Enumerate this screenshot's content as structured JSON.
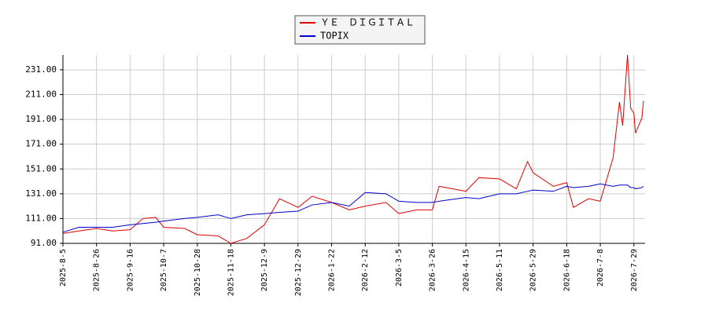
{
  "chart_data": {
    "type": "line",
    "x": [
      "2025-8-5",
      "2025-8-15",
      "2025-8-26",
      "2025-9-5",
      "2025-9-16",
      "2025-9-24",
      "2025-10-2",
      "2025-10-7",
      "2025-10-20",
      "2025-10-28",
      "2025-11-10",
      "2025-11-18",
      "2025-11-28",
      "2025-12-9",
      "2025-12-18",
      "2025-12-29",
      "2026-1-8",
      "2026-1-22",
      "2026-2-2",
      "2026-2-12",
      "2026-2-25",
      "2026-3-5",
      "2026-3-16",
      "2026-3-26",
      "2026-3-30",
      "2026-4-15",
      "2026-4-25",
      "2026-5-11",
      "2026-5-20",
      "2026-5-26",
      "2026-5-29",
      "2026-6-10",
      "2026-6-18",
      "2026-6-22",
      "2026-7-1",
      "2026-7-8",
      "2026-7-16",
      "2026-7-20",
      "2026-7-22",
      "2026-7-25",
      "2026-7-27",
      "2026-7-29",
      "2026-7-30",
      "2026-8-3",
      "2026-8-4"
    ],
    "series": [
      {
        "name": "ＹＥ　ＤＩＧＩＴＡＬ",
        "color": "#dd0000",
        "values": [
          99,
          101,
          103,
          101,
          102,
          111,
          112,
          104,
          103,
          98,
          97,
          91,
          95,
          106,
          127,
          120,
          129,
          124,
          118,
          121,
          124,
          115,
          118,
          118,
          137,
          133,
          144,
          143,
          135,
          157,
          148,
          137,
          140,
          120,
          127,
          125,
          160,
          205,
          186,
          243,
          200,
          196,
          180,
          192,
          206
        ]
      },
      {
        "name": "TOPIX",
        "color": "#0000cc",
        "values": [
          100,
          104,
          104,
          104,
          106,
          107,
          108,
          109,
          111,
          112,
          114,
          111,
          114,
          115,
          116,
          117,
          122,
          124,
          121,
          132,
          131,
          125,
          124,
          124,
          125,
          128,
          127,
          131,
          131,
          133,
          134,
          133,
          137,
          136,
          137,
          139,
          137,
          138,
          138,
          138,
          136,
          136,
          135,
          136,
          137
        ]
      }
    ],
    "xlim": [
      "2025-8-5",
      "2026-8-5"
    ],
    "xticks": [
      "2025-8-5",
      "2025-8-26",
      "2025-9-16",
      "2025-10-7",
      "2025-10-28",
      "2025-11-18",
      "2025-12-9",
      "2025-12-29",
      "2026-1-22",
      "2026-2-12",
      "2026-3-5",
      "2026-3-26",
      "2026-4-15",
      "2026-5-11",
      "2026-5-29",
      "2026-6-18",
      "2026-7-8",
      "2026-7-29"
    ],
    "ylim": [
      91,
      243
    ],
    "yticks": [
      {
        "value": 91,
        "label": "91.00"
      },
      {
        "value": 111,
        "label": "111.00"
      },
      {
        "value": 131,
        "label": "131.00"
      },
      {
        "value": 151,
        "label": "151.00"
      },
      {
        "value": 171,
        "label": "171.00"
      },
      {
        "value": 191,
        "label": "191.00"
      },
      {
        "value": 211,
        "label": "211.00"
      },
      {
        "value": 231,
        "label": "231.00"
      }
    ],
    "grid": true
  }
}
